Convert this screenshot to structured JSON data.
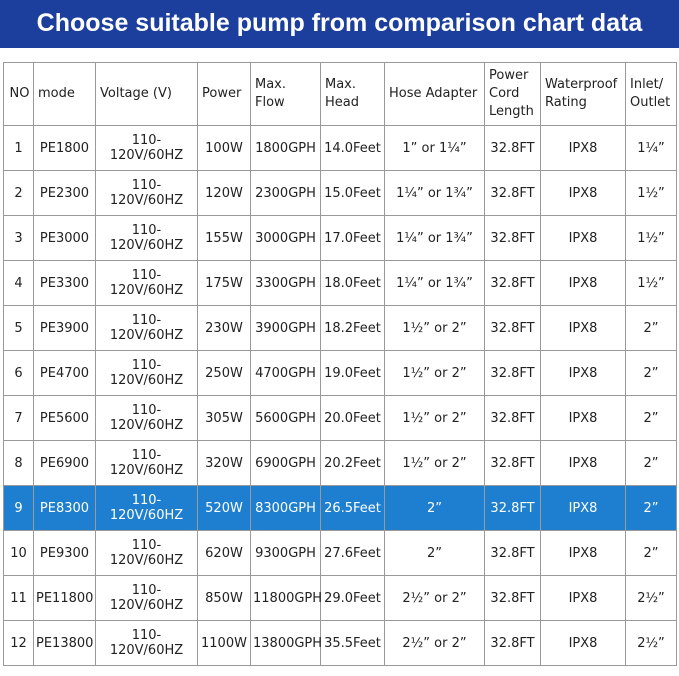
{
  "header": {
    "title": "Choose suitable pump from comparison chart data"
  },
  "table": {
    "columns": [
      "NO",
      "mode",
      "Voltage (V)",
      "Power",
      "Max. Flow",
      "Max. Head",
      "Hose Adapter",
      "Power Cord Length",
      "Waterproof Rating",
      "Inlet/ Outlet"
    ],
    "highlighted_row": 8,
    "rows": [
      [
        "1",
        "PE1800",
        "110-120V/60HZ",
        "100W",
        "1800GPH",
        "14.0Feet",
        "1” or 1¼”",
        "32.8FT",
        "IPX8",
        "1¼”"
      ],
      [
        "2",
        "PE2300",
        "110-120V/60HZ",
        "120W",
        "2300GPH",
        "15.0Feet",
        "1¼” or 1¾”",
        "32.8FT",
        "IPX8",
        "1½”"
      ],
      [
        "3",
        "PE3000",
        "110-120V/60HZ",
        "155W",
        "3000GPH",
        "17.0Feet",
        "1¼” or 1¾”",
        "32.8FT",
        "IPX8",
        "1½”"
      ],
      [
        "4",
        "PE3300",
        "110-120V/60HZ",
        "175W",
        "3300GPH",
        "18.0Feet",
        "1¼” or 1¾”",
        "32.8FT",
        "IPX8",
        "1½”"
      ],
      [
        "5",
        "PE3900",
        "110-120V/60HZ",
        "230W",
        "3900GPH",
        "18.2Feet",
        "1½” or 2”",
        "32.8FT",
        "IPX8",
        "2”"
      ],
      [
        "6",
        "PE4700",
        "110-120V/60HZ",
        "250W",
        "4700GPH",
        "19.0Feet",
        "1½” or 2”",
        "32.8FT",
        "IPX8",
        "2”"
      ],
      [
        "7",
        "PE5600",
        "110-120V/60HZ",
        "305W",
        "5600GPH",
        "20.0Feet",
        "1½” or 2”",
        "32.8FT",
        "IPX8",
        "2”"
      ],
      [
        "8",
        "PE6900",
        "110-120V/60HZ",
        "320W",
        "6900GPH",
        "20.2Feet",
        "1½” or 2”",
        "32.8FT",
        "IPX8",
        "2”"
      ],
      [
        "9",
        "PE8300",
        "110-120V/60HZ",
        "520W",
        "8300GPH",
        "26.5Feet",
        "2”",
        "32.8FT",
        "IPX8",
        "2”"
      ],
      [
        "10",
        "PE9300",
        "110-120V/60HZ",
        "620W",
        "9300GPH",
        "27.6Feet",
        "2”",
        "32.8FT",
        "IPX8",
        "2”"
      ],
      [
        "11",
        "PE11800",
        "110-120V/60HZ",
        "850W",
        "11800GPH",
        "29.0Feet",
        "2½” or 2”",
        "32.8FT",
        "IPX8",
        "2½”"
      ],
      [
        "12",
        "PE13800",
        "110-120V/60HZ",
        "1100W",
        "13800GPH",
        "35.5Feet",
        "2½” or 2”",
        "32.8FT",
        "IPX8",
        "2½”"
      ]
    ]
  }
}
